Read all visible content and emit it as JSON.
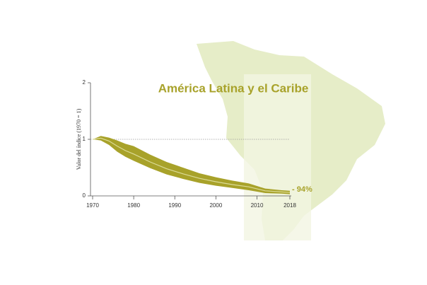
{
  "chart_data": {
    "type": "band-line",
    "title": "América Latina y el Caribe",
    "y_label": "Valor del índice (1970 = 1)",
    "annotation": "- 94%",
    "x": [
      1970,
      1972,
      1974,
      1976,
      1978,
      1980,
      1984,
      1988,
      1992,
      1996,
      2000,
      2004,
      2008,
      2012,
      2016,
      2018
    ],
    "values": [
      1,
      1.02,
      0.97,
      0.88,
      0.8,
      0.74,
      0.6,
      0.48,
      0.39,
      0.31,
      0.25,
      0.2,
      0.16,
      0.09,
      0.07,
      0.06
    ],
    "upper": [
      1,
      1.06,
      1.03,
      0.98,
      0.92,
      0.88,
      0.73,
      0.6,
      0.5,
      0.4,
      0.33,
      0.27,
      0.22,
      0.13,
      0.1,
      0.09
    ],
    "lower": [
      1,
      0.98,
      0.9,
      0.78,
      0.69,
      0.62,
      0.49,
      0.38,
      0.3,
      0.23,
      0.18,
      0.14,
      0.1,
      0.05,
      0.04,
      0.03
    ],
    "color": "#a8a22a",
    "line_color": "#dcdc96",
    "xlim": [
      1970,
      2018
    ],
    "xticks": [
      1970,
      1980,
      1990,
      2000,
      2010,
      2018
    ],
    "ylim": [
      0,
      2
    ],
    "yticks": [
      0,
      1,
      2
    ],
    "reference_line": 1
  }
}
